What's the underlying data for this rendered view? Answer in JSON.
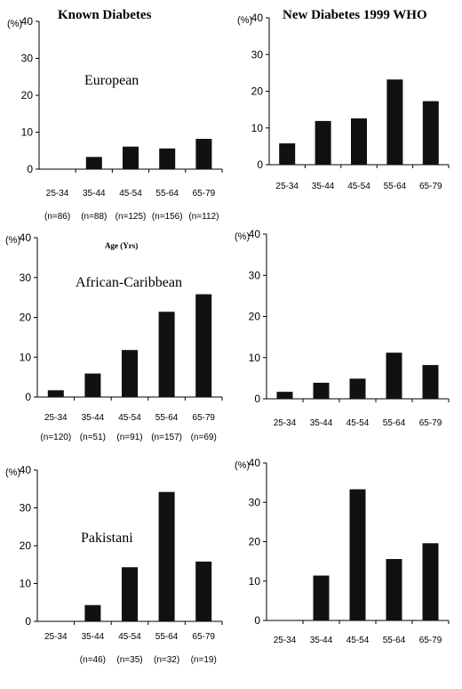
{
  "titles": {
    "left": "Known Diabetes",
    "right": "New Diabetes 1999 WHO"
  },
  "age_axis_label": "Age (Yrs)",
  "unit_label": "(%)",
  "chart_data": [
    {
      "type": "bar",
      "panel": "known-european",
      "title": "Known Diabetes",
      "group_label": "European",
      "categories": [
        "25-34",
        "35-44",
        "45-54",
        "55-64",
        "65-79"
      ],
      "n_labels": [
        "(n=86)",
        "(n=88)",
        "(n=125)",
        "(n=156)",
        "(n=112)"
      ],
      "values": [
        0,
        3.3,
        6.1,
        5.6,
        8.2
      ],
      "ylim": [
        0,
        40
      ],
      "yticks": [
        0,
        10,
        20,
        30,
        40
      ]
    },
    {
      "type": "bar",
      "panel": "new-european",
      "title": "New Diabetes 1999 WHO",
      "categories": [
        "25-34",
        "35-44",
        "45-54",
        "55-64",
        "65-79"
      ],
      "values": [
        5.8,
        11.9,
        12.6,
        23.2,
        17.3
      ],
      "ylim": [
        0,
        40
      ],
      "yticks": [
        0,
        10,
        20,
        30,
        40
      ]
    },
    {
      "type": "bar",
      "panel": "known-african-caribbean",
      "group_label": "African-Caribbean",
      "categories": [
        "25-34",
        "35-44",
        "45-54",
        "55-64",
        "65-79"
      ],
      "n_labels": [
        "(n=120)",
        "(n=51)",
        "(n=91)",
        "(n=157)",
        "(n=69)"
      ],
      "values": [
        1.7,
        5.9,
        11.8,
        21.4,
        25.8
      ],
      "ylim": [
        0,
        40
      ],
      "yticks": [
        0,
        10,
        20,
        30,
        40
      ]
    },
    {
      "type": "bar",
      "panel": "new-african-caribbean",
      "categories": [
        "25-34",
        "35-44",
        "45-54",
        "55-64",
        "65-79"
      ],
      "values": [
        1.7,
        3.9,
        4.9,
        11.2,
        8.2
      ],
      "ylim": [
        0,
        40
      ],
      "yticks": [
        0,
        10,
        20,
        30,
        40
      ]
    },
    {
      "type": "bar",
      "panel": "known-pakistani",
      "group_label": "Pakistani",
      "categories": [
        "25-34",
        "35-44",
        "45-54",
        "55-64",
        "65-79"
      ],
      "n_labels": [
        "",
        "(n=46)",
        "(n=35)",
        "(n=32)",
        "(n=19)"
      ],
      "values": [
        0,
        4.3,
        14.3,
        34.2,
        15.8
      ],
      "ylim": [
        0,
        40
      ],
      "yticks": [
        0,
        10,
        20,
        30,
        40
      ]
    },
    {
      "type": "bar",
      "panel": "new-pakistani",
      "categories": [
        "25-34",
        "35-44",
        "45-54",
        "55-64",
        "65-79"
      ],
      "values": [
        0,
        11.4,
        33.3,
        15.6,
        19.6
      ],
      "ylim": [
        0,
        40
      ],
      "yticks": [
        0,
        10,
        20,
        30,
        40
      ]
    }
  ]
}
